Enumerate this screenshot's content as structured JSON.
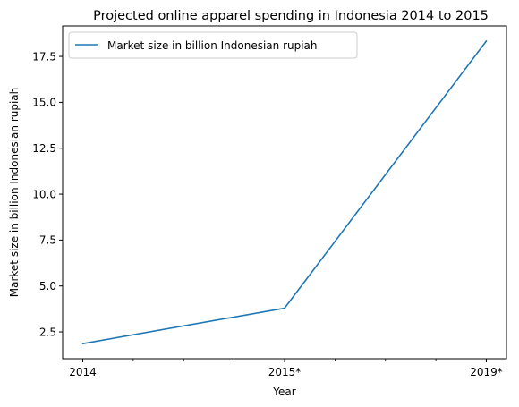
{
  "chart_data": {
    "type": "line",
    "title": "Projected online apparel spending in Indonesia 2014 to 2015",
    "xlabel": "Year",
    "ylabel": "Market size in billion Indonesian rupiah",
    "categories": [
      "2014",
      "2015*",
      "2019*"
    ],
    "series": [
      {
        "name": "Market size in billion Indonesian rupiah",
        "values": [
          1.86,
          3.79,
          18.34
        ],
        "color": "#1f77b4"
      }
    ],
    "y_ticks": [
      2.5,
      5.0,
      7.5,
      10.0,
      12.5,
      15.0,
      17.5
    ],
    "y_tick_labels": [
      "2.5",
      "5.0",
      "7.5",
      "10.0",
      "12.5",
      "15.0",
      "17.5"
    ],
    "ylim": [
      1.04,
      19.16
    ],
    "minor_x_ticks_between_categories": 3,
    "grid": false,
    "legend_position": "upper-left"
  }
}
